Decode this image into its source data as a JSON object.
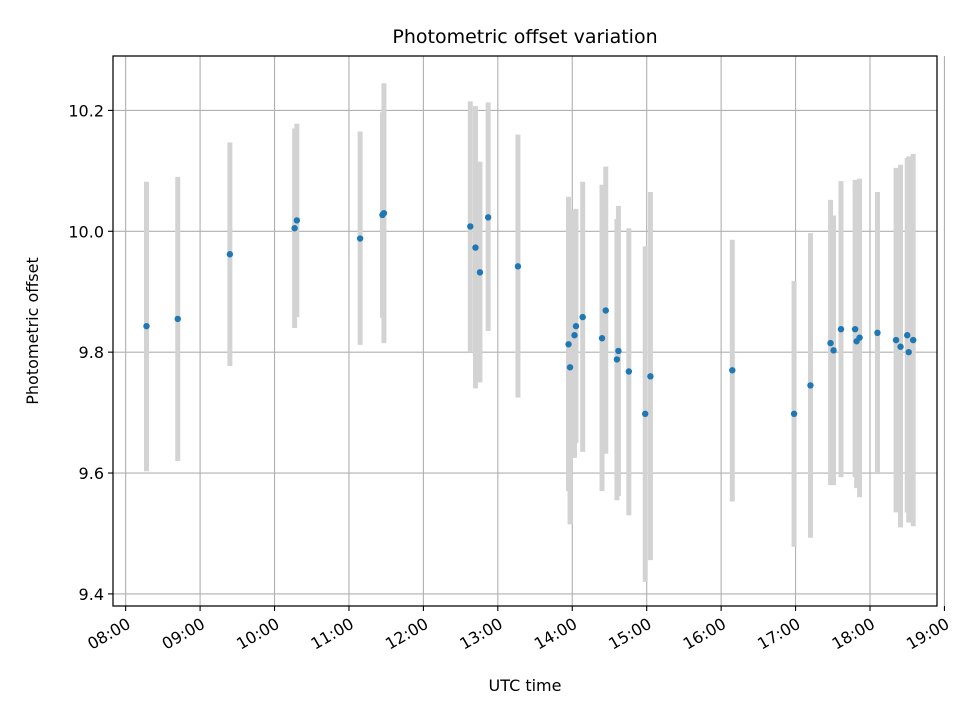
{
  "chart_data": {
    "type": "scatter",
    "title": "Photometric offset variation",
    "xlabel": "UTC time",
    "ylabel": "Photometric offset",
    "x_unit": "hours UTC",
    "xlim": [
      7.83,
      18.9
    ],
    "ylim": [
      9.38,
      10.29
    ],
    "x_ticks": [
      "08:00",
      "09:00",
      "10:00",
      "11:00",
      "12:00",
      "13:00",
      "14:00",
      "15:00",
      "16:00",
      "17:00",
      "18:00",
      "19:00"
    ],
    "y_ticks": [
      "9.4",
      "9.6",
      "9.8",
      "10.0",
      "10.2"
    ],
    "grid": true,
    "point_color": "#1f77b4",
    "errorbar_color": "#d3d3d3",
    "points": [
      {
        "x": 8.28,
        "y": 9.843,
        "lo": 9.603,
        "hi": 10.082
      },
      {
        "x": 8.7,
        "y": 9.855,
        "lo": 9.62,
        "hi": 10.09
      },
      {
        "x": 9.4,
        "y": 9.962,
        "lo": 9.777,
        "hi": 10.147
      },
      {
        "x": 10.27,
        "y": 10.005,
        "lo": 9.84,
        "hi": 10.17
      },
      {
        "x": 10.3,
        "y": 10.018,
        "lo": 9.858,
        "hi": 10.178
      },
      {
        "x": 11.15,
        "y": 9.988,
        "lo": 9.812,
        "hi": 10.165
      },
      {
        "x": 11.45,
        "y": 10.027,
        "lo": 9.857,
        "hi": 10.197
      },
      {
        "x": 11.47,
        "y": 10.03,
        "lo": 9.815,
        "hi": 10.245
      },
      {
        "x": 12.63,
        "y": 10.008,
        "lo": 9.8,
        "hi": 10.215
      },
      {
        "x": 12.7,
        "y": 9.973,
        "lo": 9.74,
        "hi": 10.207
      },
      {
        "x": 12.76,
        "y": 9.932,
        "lo": 9.75,
        "hi": 10.115
      },
      {
        "x": 12.87,
        "y": 10.023,
        "lo": 9.835,
        "hi": 10.213
      },
      {
        "x": 13.27,
        "y": 9.942,
        "lo": 9.725,
        "hi": 10.16
      },
      {
        "x": 13.95,
        "y": 9.813,
        "lo": 9.57,
        "hi": 10.057
      },
      {
        "x": 13.97,
        "y": 9.775,
        "lo": 9.515,
        "hi": 10.035
      },
      {
        "x": 14.03,
        "y": 9.828,
        "lo": 9.625,
        "hi": 10.035
      },
      {
        "x": 14.05,
        "y": 9.843,
        "lo": 9.65,
        "hi": 10.037
      },
      {
        "x": 14.14,
        "y": 9.858,
        "lo": 9.635,
        "hi": 10.082
      },
      {
        "x": 14.4,
        "y": 9.823,
        "lo": 9.57,
        "hi": 10.077
      },
      {
        "x": 14.45,
        "y": 9.869,
        "lo": 9.632,
        "hi": 10.107
      },
      {
        "x": 14.6,
        "y": 9.788,
        "lo": 9.555,
        "hi": 10.02
      },
      {
        "x": 14.62,
        "y": 9.802,
        "lo": 9.562,
        "hi": 10.042
      },
      {
        "x": 14.76,
        "y": 9.768,
        "lo": 9.53,
        "hi": 10.005
      },
      {
        "x": 14.98,
        "y": 9.698,
        "lo": 9.42,
        "hi": 9.975
      },
      {
        "x": 15.05,
        "y": 9.76,
        "lo": 9.456,
        "hi": 10.065
      },
      {
        "x": 16.15,
        "y": 9.77,
        "lo": 9.553,
        "hi": 9.986
      },
      {
        "x": 16.98,
        "y": 9.698,
        "lo": 9.478,
        "hi": 9.918
      },
      {
        "x": 17.2,
        "y": 9.745,
        "lo": 9.493,
        "hi": 9.997
      },
      {
        "x": 17.47,
        "y": 9.815,
        "lo": 9.58,
        "hi": 10.052
      },
      {
        "x": 17.51,
        "y": 9.803,
        "lo": 9.58,
        "hi": 10.026
      },
      {
        "x": 17.61,
        "y": 9.838,
        "lo": 9.593,
        "hi": 10.083
      },
      {
        "x": 17.8,
        "y": 9.838,
        "lo": 9.593,
        "hi": 10.085
      },
      {
        "x": 17.82,
        "y": 9.818,
        "lo": 9.575,
        "hi": 10.062
      },
      {
        "x": 17.86,
        "y": 9.824,
        "lo": 9.56,
        "hi": 10.087
      },
      {
        "x": 18.1,
        "y": 9.832,
        "lo": 9.6,
        "hi": 10.065
      },
      {
        "x": 18.35,
        "y": 9.82,
        "lo": 9.535,
        "hi": 10.105
      },
      {
        "x": 18.41,
        "y": 9.809,
        "lo": 9.51,
        "hi": 10.11
      },
      {
        "x": 18.5,
        "y": 9.828,
        "lo": 9.535,
        "hi": 10.121
      },
      {
        "x": 18.52,
        "y": 9.8,
        "lo": 9.518,
        "hi": 10.124
      },
      {
        "x": 18.58,
        "y": 9.82,
        "lo": 9.512,
        "hi": 10.128
      }
    ]
  }
}
